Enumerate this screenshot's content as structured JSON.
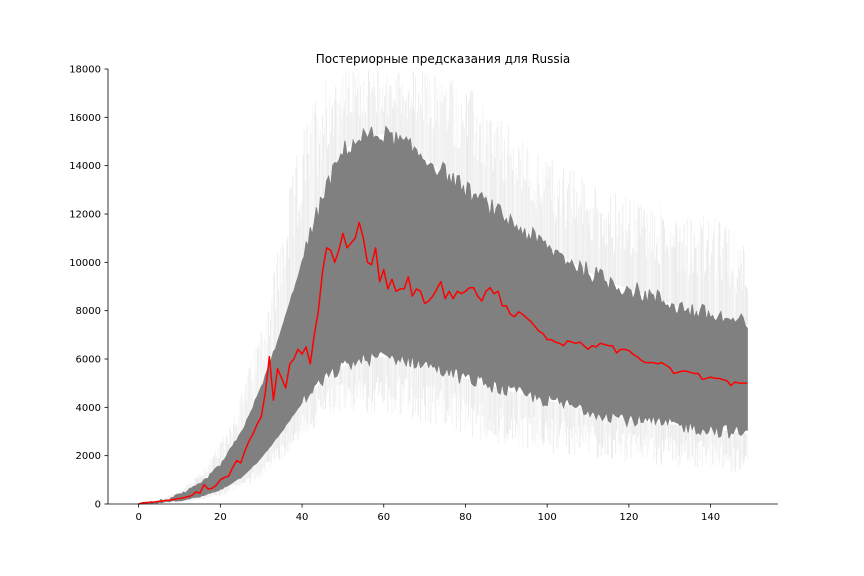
{
  "chart_data": {
    "type": "line",
    "title": "Постериорные предсказания для Russia",
    "xlabel": "",
    "ylabel": "",
    "xlim": [
      -7.5,
      156.5
    ],
    "ylim": [
      0,
      18000
    ],
    "x_ticks": [
      0,
      20,
      40,
      60,
      80,
      100,
      120,
      140
    ],
    "y_ticks": [
      0,
      2000,
      4000,
      6000,
      8000,
      10000,
      12000,
      14000,
      16000,
      18000
    ],
    "grid": false,
    "colors": {
      "observed": "#ff0000",
      "posterior": "#808080"
    },
    "posterior_band": {
      "x": [
        0,
        5,
        10,
        15,
        20,
        25,
        30,
        35,
        40,
        45,
        50,
        55,
        60,
        65,
        70,
        75,
        80,
        85,
        90,
        95,
        100,
        105,
        110,
        115,
        120,
        125,
        130,
        135,
        140,
        145,
        149
      ],
      "core_lower": [
        0,
        50,
        150,
        300,
        600,
        1100,
        1900,
        3000,
        4200,
        5100,
        5700,
        6000,
        6100,
        6000,
        5800,
        5500,
        5200,
        5000,
        4700,
        4500,
        4300,
        4100,
        3900,
        3700,
        3500,
        3400,
        3300,
        3200,
        3100,
        3000,
        2900
      ],
      "core_upper": [
        0,
        100,
        350,
        800,
        1600,
        2900,
        4800,
        7200,
        10000,
        12700,
        14600,
        15200,
        15300,
        14900,
        14300,
        13700,
        13000,
        12400,
        11800,
        11200,
        10600,
        10100,
        9600,
        9200,
        8900,
        8600,
        8300,
        8000,
        7800,
        7600,
        7400
      ],
      "outer_lower": [
        0,
        30,
        80,
        150,
        300,
        600,
        1100,
        1800,
        2700,
        3400,
        3700,
        3800,
        3700,
        3500,
        3300,
        3100,
        2800,
        2600,
        2400,
        2300,
        2100,
        2000,
        1900,
        1800,
        1700,
        1600,
        1600,
        1500,
        1400,
        1300,
        1300
      ],
      "outer_upper": [
        0,
        200,
        600,
        1300,
        2500,
        4500,
        7500,
        11500,
        15500,
        18000,
        18000,
        18000,
        18000,
        18000,
        18000,
        18000,
        17500,
        16500,
        15800,
        15000,
        14500,
        14000,
        13500,
        13000,
        12800,
        12600,
        12400,
        12200,
        12000,
        11500,
        11000
      ]
    },
    "series": [
      {
        "values": [
          [
            0,
            0
          ],
          [
            1,
            50
          ],
          [
            2,
            60
          ],
          [
            3,
            70
          ],
          [
            4,
            90
          ],
          [
            5,
            110
          ],
          [
            6,
            130
          ],
          [
            7,
            150
          ],
          [
            8,
            170
          ],
          [
            9,
            200
          ],
          [
            10,
            230
          ],
          [
            11,
            260
          ],
          [
            12,
            300
          ],
          [
            13,
            350
          ],
          [
            14,
            500
          ],
          [
            15,
            450
          ],
          [
            16,
            800
          ],
          [
            17,
            620
          ],
          [
            18,
            650
          ],
          [
            19,
            780
          ],
          [
            20,
            1000
          ],
          [
            21,
            1100
          ],
          [
            22,
            1150
          ],
          [
            23,
            1500
          ],
          [
            24,
            1800
          ],
          [
            25,
            1700
          ],
          [
            26,
            2200
          ],
          [
            27,
            2600
          ],
          [
            28,
            2900
          ],
          [
            29,
            3300
          ],
          [
            30,
            3600
          ],
          [
            31,
            4600
          ],
          [
            32,
            6100
          ],
          [
            33,
            4300
          ],
          [
            34,
            5600
          ],
          [
            35,
            5200
          ],
          [
            36,
            4800
          ],
          [
            37,
            5800
          ],
          [
            38,
            6000
          ],
          [
            39,
            6400
          ],
          [
            40,
            6200
          ],
          [
            41,
            6500
          ],
          [
            42,
            5800
          ],
          [
            43,
            7000
          ],
          [
            44,
            8000
          ],
          [
            45,
            9600
          ],
          [
            46,
            10600
          ],
          [
            47,
            10500
          ],
          [
            48,
            10000
          ],
          [
            49,
            10500
          ],
          [
            50,
            11200
          ],
          [
            51,
            10600
          ],
          [
            52,
            10800
          ],
          [
            53,
            11000
          ],
          [
            54,
            11650
          ],
          [
            55,
            11000
          ],
          [
            56,
            10000
          ],
          [
            57,
            9900
          ],
          [
            58,
            10600
          ],
          [
            59,
            9200
          ],
          [
            60,
            9700
          ],
          [
            61,
            8900
          ],
          [
            62,
            9300
          ],
          [
            63,
            8800
          ],
          [
            64,
            8900
          ],
          [
            65,
            8900
          ],
          [
            66,
            9400
          ],
          [
            67,
            8600
          ],
          [
            68,
            8900
          ],
          [
            69,
            8800
          ],
          [
            70,
            8300
          ],
          [
            71,
            8400
          ],
          [
            72,
            8600
          ],
          [
            73,
            8900
          ],
          [
            74,
            9200
          ],
          [
            75,
            8500
          ],
          [
            76,
            8800
          ],
          [
            77,
            8500
          ],
          [
            78,
            8800
          ],
          [
            79,
            8700
          ],
          [
            80,
            8800
          ],
          [
            81,
            8950
          ],
          [
            82,
            8950
          ],
          [
            83,
            8600
          ],
          [
            84,
            8400
          ],
          [
            85,
            8800
          ],
          [
            86,
            8950
          ],
          [
            87,
            8700
          ],
          [
            88,
            8800
          ],
          [
            89,
            8200
          ],
          [
            90,
            8200
          ],
          [
            91,
            7850
          ],
          [
            92,
            7750
          ],
          [
            93,
            7950
          ],
          [
            94,
            7850
          ],
          [
            95,
            7700
          ],
          [
            96,
            7550
          ],
          [
            97,
            7350
          ],
          [
            98,
            7150
          ],
          [
            99,
            7050
          ],
          [
            100,
            6800
          ],
          [
            101,
            6800
          ],
          [
            102,
            6700
          ],
          [
            103,
            6650
          ],
          [
            104,
            6550
          ],
          [
            105,
            6750
          ],
          [
            106,
            6700
          ],
          [
            107,
            6650
          ],
          [
            108,
            6700
          ],
          [
            109,
            6550
          ],
          [
            110,
            6400
          ],
          [
            111,
            6550
          ],
          [
            112,
            6500
          ],
          [
            113,
            6650
          ],
          [
            114,
            6600
          ],
          [
            115,
            6550
          ],
          [
            116,
            6550
          ],
          [
            117,
            6250
          ],
          [
            118,
            6400
          ],
          [
            119,
            6400
          ],
          [
            120,
            6350
          ],
          [
            121,
            6200
          ],
          [
            122,
            6100
          ],
          [
            123,
            5950
          ],
          [
            124,
            5850
          ],
          [
            125,
            5850
          ],
          [
            126,
            5850
          ],
          [
            127,
            5800
          ],
          [
            128,
            5850
          ],
          [
            129,
            5750
          ],
          [
            130,
            5650
          ],
          [
            131,
            5400
          ],
          [
            132,
            5450
          ],
          [
            133,
            5500
          ],
          [
            134,
            5500
          ],
          [
            135,
            5450
          ],
          [
            136,
            5400
          ],
          [
            137,
            5400
          ],
          [
            138,
            5150
          ],
          [
            139,
            5200
          ],
          [
            140,
            5250
          ],
          [
            141,
            5200
          ],
          [
            142,
            5200
          ],
          [
            143,
            5150
          ],
          [
            144,
            5100
          ],
          [
            145,
            4900
          ],
          [
            146,
            5050
          ],
          [
            147,
            5000
          ],
          [
            148,
            5000
          ],
          [
            149,
            5000
          ]
        ]
      }
    ]
  }
}
